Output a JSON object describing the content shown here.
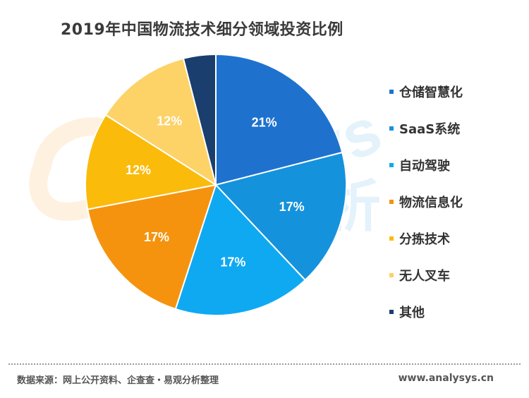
{
  "title": "2019年中国物流技术细分领域投资比例",
  "chart_data": {
    "type": "pie",
    "title": "2019年中国物流技术细分领域投资比例",
    "categories": [
      "仓储智慧化",
      "SaaS系统",
      "自动驾驶",
      "物流信息化",
      "分拣技术",
      "无人叉车",
      "其他"
    ],
    "values": [
      21,
      17,
      17,
      17,
      12,
      12,
      4
    ],
    "data_labels": [
      "21%",
      "17%",
      "17%",
      "17%",
      "12%",
      "12%",
      ""
    ],
    "colors": [
      "#1E72CE",
      "#1592DC",
      "#0FA9F2",
      "#F5930E",
      "#FBBB0B",
      "#FDD267",
      "#1A3E6E"
    ],
    "start_angle": "12-o'clock",
    "direction": "clockwise",
    "legend_position": "right"
  },
  "watermark": {
    "brand": "analysys",
    "cn": "易观分析"
  },
  "footer": {
    "source": "数据来源：网上公开资料、企查查・易观分析整理",
    "url": "www.analysys.cn"
  }
}
